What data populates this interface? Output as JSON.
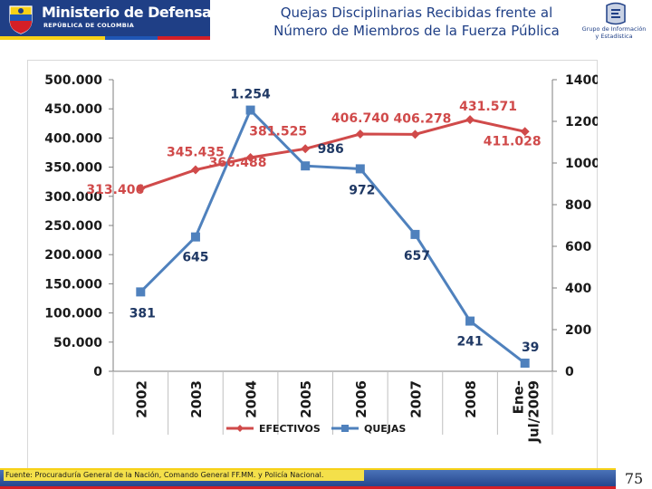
{
  "header": {
    "org_name": "Ministerio de Defensa Nacional",
    "country": "REPÚBLICA DE COLOMBIA",
    "title_line1": "Quejas Disciplinarias Recibidas frente al",
    "title_line2": "Número de Miembros de la Fuerza Pública",
    "group_name_line1": "Grupo de Información",
    "group_name_line2": "y Estadística"
  },
  "footer": {
    "source": "Fuente: Procuraduría General de la Nación, Comando General FF.MM. y Policía Nacional.",
    "page_number": "75"
  },
  "colors": {
    "efectivos": "#d04a4a",
    "quejas": "#4f81bd",
    "brand_blue": "#1f3f86",
    "brand_yellow": "#f7d117",
    "brand_red": "#d41f26"
  },
  "chart_data": {
    "type": "line",
    "title": "Quejas Disciplinarias Recibidas frente al Número de Miembros de la Fuerza Pública",
    "categories": [
      "2002",
      "2003",
      "2004",
      "2005",
      "2006",
      "2007",
      "2008",
      "Ene-Jul/2009"
    ],
    "category_label_lines": [
      [
        "2002"
      ],
      [
        "2003"
      ],
      [
        "2004"
      ],
      [
        "2005"
      ],
      [
        "2006"
      ],
      [
        "2007"
      ],
      [
        "2008"
      ],
      [
        "Ene-",
        "Jul/2009"
      ]
    ],
    "series": [
      {
        "name": "EFECTIVOS",
        "axis": "left",
        "marker": "diamond",
        "values": [
          313406,
          345435,
          366488,
          381525,
          406740,
          406278,
          431571,
          411028
        ],
        "labels": [
          "313.406",
          "345.435",
          "366.488",
          "381.525",
          "406.740",
          "406.278",
          "431.571",
          "411.028"
        ]
      },
      {
        "name": "QUEJAS",
        "axis": "right",
        "marker": "square",
        "values": [
          381,
          645,
          1254,
          986,
          972,
          657,
          241,
          39
        ],
        "labels": [
          "381",
          "645",
          "1.254",
          "986",
          "972",
          "657",
          "241",
          "39"
        ]
      }
    ],
    "left_axis": {
      "ylim": [
        0,
        500000
      ],
      "ticks": [
        0,
        50000,
        100000,
        150000,
        200000,
        250000,
        300000,
        350000,
        400000,
        450000,
        500000
      ],
      "tick_labels": [
        "0",
        "50.000",
        "100.000",
        "150.000",
        "200.000",
        "250.000",
        "300.000",
        "350.000",
        "400.000",
        "450.000",
        "500.000"
      ]
    },
    "right_axis": {
      "ylim": [
        0,
        1400
      ],
      "ticks": [
        0,
        200,
        400,
        600,
        800,
        1000,
        1200,
        1400
      ],
      "tick_labels": [
        "0",
        "200",
        "400",
        "600",
        "800",
        "1000",
        "1200",
        "1400"
      ]
    },
    "grid": true,
    "legend_position": "bottom-center"
  }
}
